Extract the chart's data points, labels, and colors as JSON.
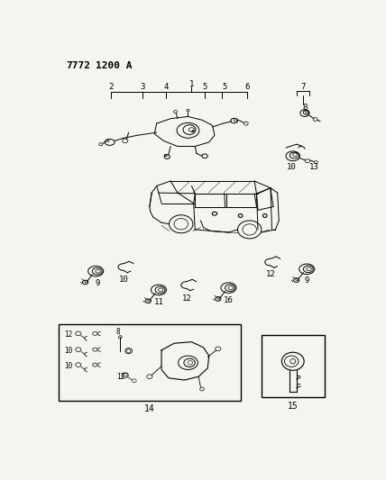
{
  "bg_color": "#f5f5f0",
  "fig_width": 4.28,
  "fig_height": 5.33,
  "dpi": 100,
  "header": "7772  1200 A"
}
